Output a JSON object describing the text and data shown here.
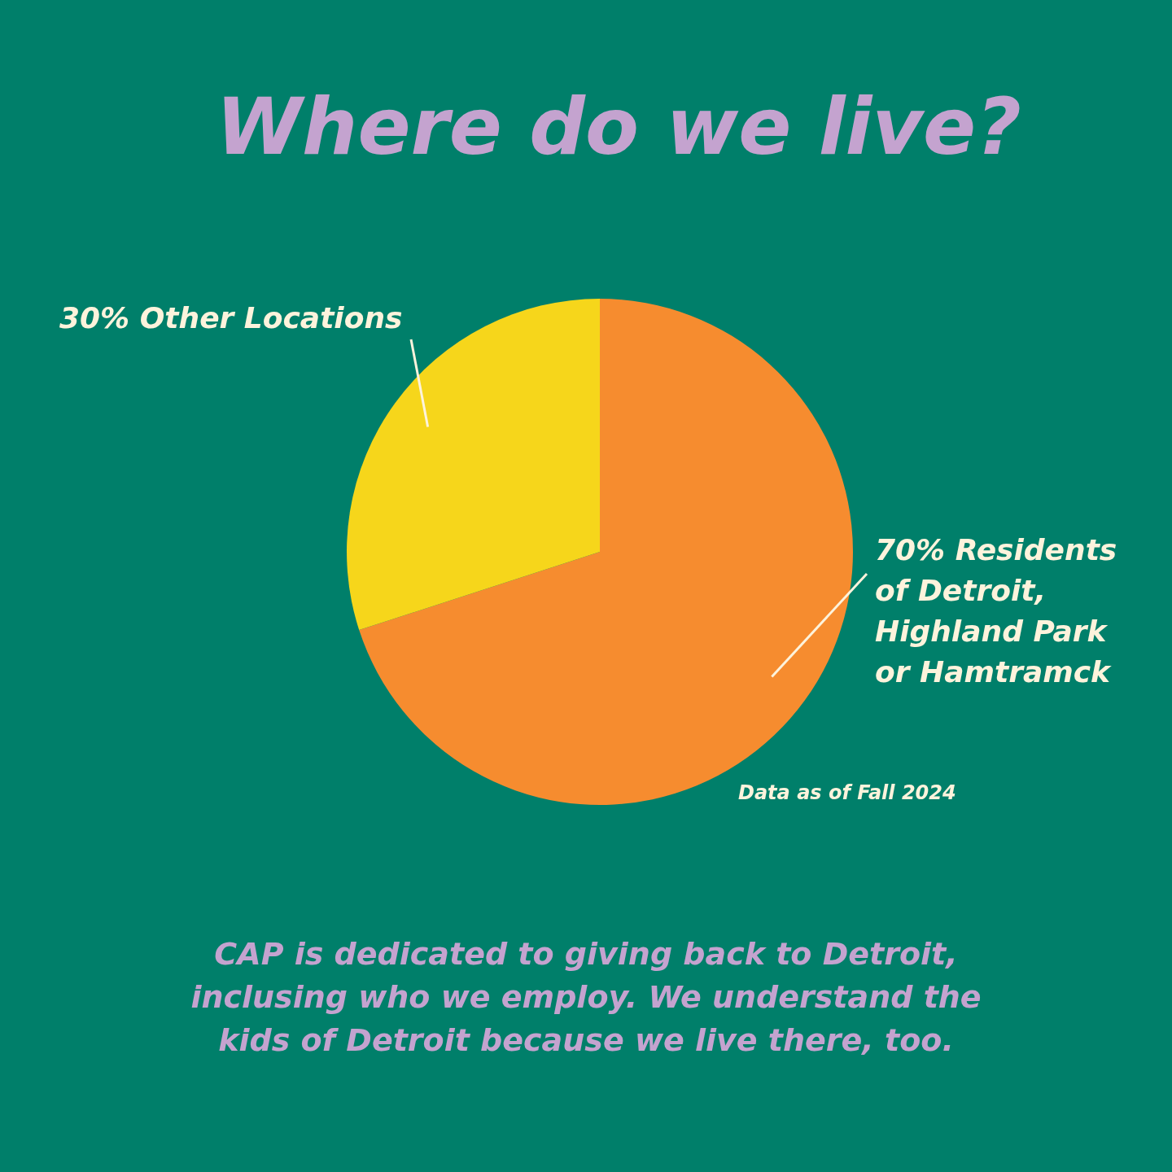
{
  "chart_data": {
    "type": "pie",
    "title": "Where do we live?",
    "categories": [
      "70% Residents of Detroit, Highland Park or Hamtramck",
      "30% Other Locations"
    ],
    "values": [
      70,
      30
    ],
    "colors": [
      "#f68c2f",
      "#f6d61b"
    ],
    "legend": false,
    "annotations": [
      "Data as of Fall 2024",
      "CAP is dedicated to giving back to Detroit, inclusing who we employ. We understand the kids of Detroit because we live there, too."
    ]
  }
}
